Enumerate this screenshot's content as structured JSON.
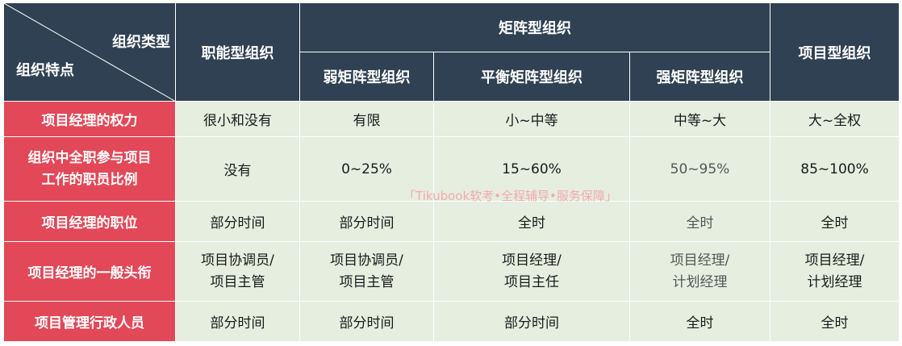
{
  "corner": {
    "top_label": "组织类型",
    "bottom_label": "组织特点"
  },
  "header": {
    "functional": "职能型组织",
    "matrix": "矩阵型组织",
    "projectized": "项目型组织",
    "weak_matrix": "弱矩阵型组织",
    "balanced_matrix": "平衡矩阵型组织",
    "strong_matrix": "强矩阵型组织"
  },
  "rows": [
    {
      "label": "项目经理的权力",
      "cells": [
        "很小和没有",
        "有限",
        "小~中等",
        "中等~大",
        "大~全权"
      ]
    },
    {
      "label_lines": [
        "组织中全职参与项目",
        "工作的职员比例"
      ],
      "cells": [
        "没有",
        "0~25%",
        "15~60%",
        "50~95%",
        "85~100%"
      ]
    },
    {
      "label": "项目经理的职位",
      "cells": [
        "部分时间",
        "部分时间",
        "全时",
        "全时",
        "全时"
      ]
    },
    {
      "label": "项目经理的一般头衔",
      "cells_lines": [
        [
          "项目协调员/",
          "项目主管"
        ],
        [
          "项目协调员/",
          "项目主管"
        ],
        [
          "项目经理/",
          "项目主任"
        ],
        [
          "项目经理/",
          "计划经理"
        ],
        [
          "项目经理/",
          "计划经理"
        ]
      ]
    },
    {
      "label": "项目管理行政人员",
      "cells": [
        "部分时间",
        "部分时间",
        "部分时间",
        "全时",
        "全时"
      ]
    }
  ],
  "watermark": "「Tikubook软考•全程辅导•服务保障」"
}
